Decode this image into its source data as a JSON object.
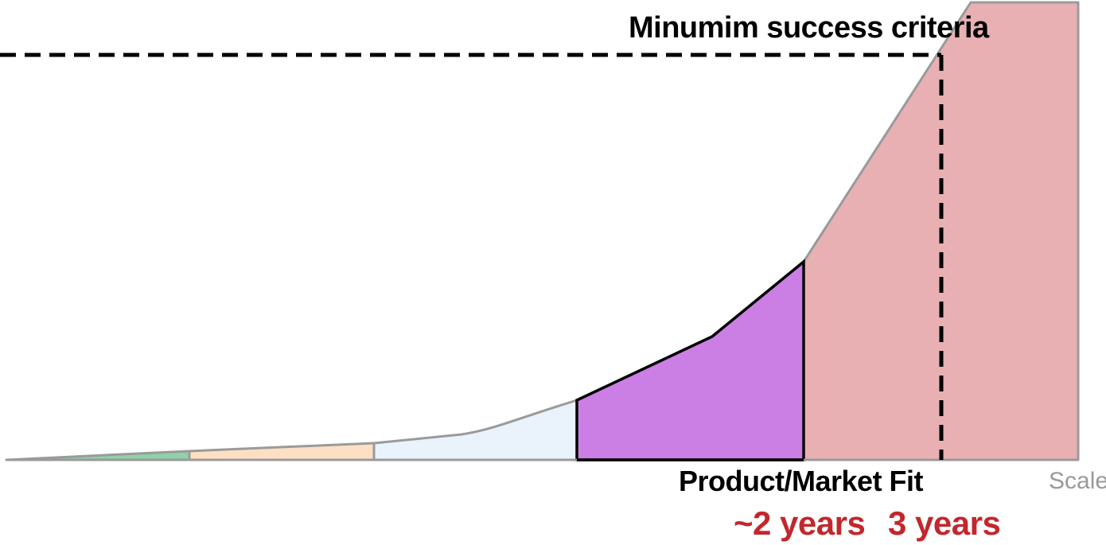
{
  "diagram": {
    "labels": {
      "criteria": "Minumim success criteria",
      "pmf": "Product/Market Fit",
      "scale": "Scale",
      "years_2": "~2 years",
      "years_3": "3 years"
    },
    "colors": {
      "stage_green": "#8fd1a8",
      "stage_orange": "#fde0c3",
      "stage_light_blue": "#eaf2fb",
      "stage_pmf": "#cb7fe5",
      "stage_scale": "#e8b0b3",
      "outline_gray": "#9a9a9a",
      "outline_black": "#000000",
      "accent_red": "#c2272d"
    }
  }
}
